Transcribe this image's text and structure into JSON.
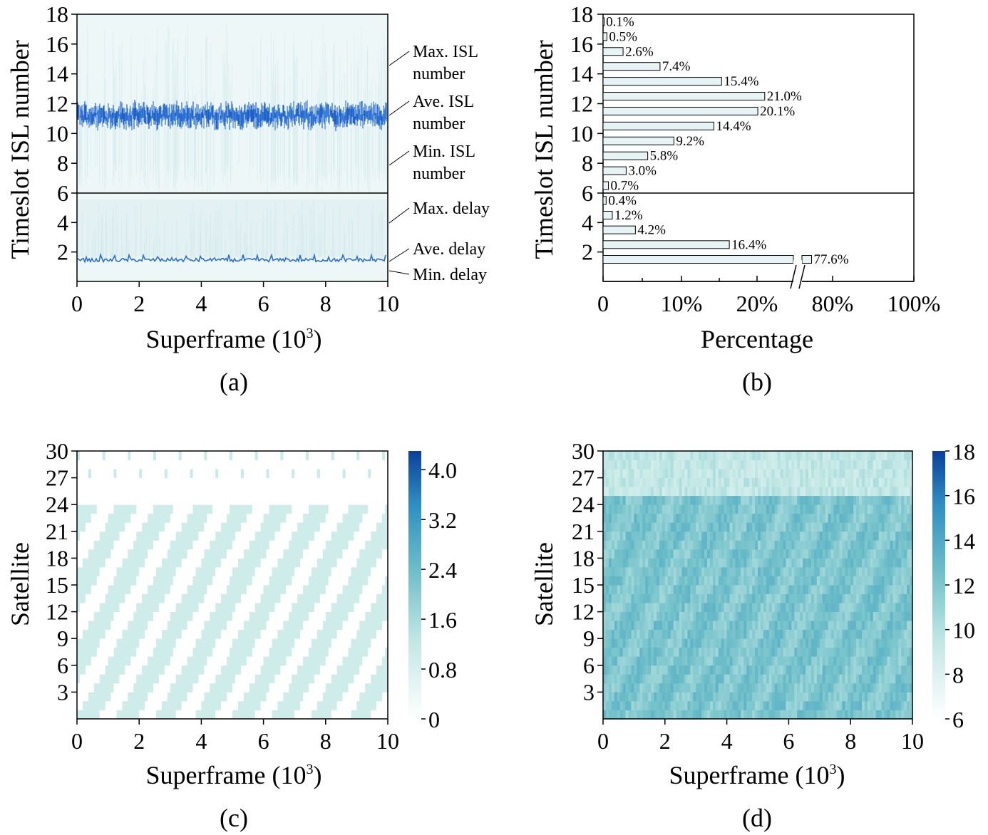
{
  "chart_data": [
    {
      "id": "a",
      "type": "line",
      "caption": "(a)",
      "xlabel": "Superframe (10",
      "xlabel_sup": "3",
      "xlabel_close": ")",
      "ylabel": "Timeslot  ISL number",
      "xlim": [
        0,
        10
      ],
      "x_ticks": [
        "0",
        "2",
        "4",
        "6",
        "8",
        "10"
      ],
      "y_ticks": [
        "2",
        "4",
        "6",
        "8",
        "10",
        "12",
        "14",
        "16",
        "18"
      ],
      "upper_panel": {
        "ylim": [
          6,
          18
        ],
        "series": [
          {
            "name": "Max. ISL number",
            "band": [
              9.5,
              17.5
            ]
          },
          {
            "name": "Ave. ISL number",
            "mean": 11.2,
            "spread": 0.4
          },
          {
            "name": "Min. ISL number",
            "band": [
              6.0,
              8.0
            ]
          }
        ]
      },
      "lower_panel": {
        "ylim": [
          0,
          6
        ],
        "series": [
          {
            "name": "Max. delay",
            "band": [
              1.5,
              5.5
            ]
          },
          {
            "name": "Ave. delay",
            "mean": 1.45,
            "spread": 0.12
          },
          {
            "name": "Min. delay",
            "value": 1.0
          }
        ]
      },
      "annotations": [
        {
          "line1": "Max. ISL",
          "line2": "number"
        },
        {
          "line1": "Ave. ISL",
          "line2": "number"
        },
        {
          "line1": "Min. ISL",
          "line2": "number"
        },
        {
          "line1": "Max. delay",
          "line2": ""
        },
        {
          "line1": "Ave. delay",
          "line2": ""
        },
        {
          "line1": "Min. delay",
          "line2": ""
        }
      ]
    },
    {
      "id": "b",
      "type": "bar",
      "orientation": "horizontal",
      "caption": "(b)",
      "xlabel": "Percentage",
      "ylabel": "Timeslot  ISL number",
      "x_ticks": [
        "0",
        "10%",
        "20%",
        "80%",
        "100%"
      ],
      "y_ticks": [
        "2",
        "4",
        "6",
        "8",
        "10",
        "12",
        "14",
        "16",
        "18"
      ],
      "axis_break": "between 20% and 80%",
      "bars": [
        {
          "y": 17.5,
          "value": 0.1,
          "label": "0.1%"
        },
        {
          "y": 16.5,
          "value": 0.5,
          "label": "0.5%"
        },
        {
          "y": 15.5,
          "value": 2.6,
          "label": "2.6%"
        },
        {
          "y": 14.5,
          "value": 7.4,
          "label": "7.4%"
        },
        {
          "y": 13.5,
          "value": 15.4,
          "label": "15.4%"
        },
        {
          "y": 12.5,
          "value": 21.0,
          "label": "21.0%"
        },
        {
          "y": 11.5,
          "value": 20.1,
          "label": "20.1%"
        },
        {
          "y": 10.5,
          "value": 14.4,
          "label": "14.4%"
        },
        {
          "y": 9.5,
          "value": 9.2,
          "label": "9.2%"
        },
        {
          "y": 8.5,
          "value": 5.8,
          "label": "5.8%"
        },
        {
          "y": 7.5,
          "value": 3.0,
          "label": "3.0%"
        },
        {
          "y": 6.5,
          "value": 0.7,
          "label": "0.7%"
        },
        {
          "y": 5.5,
          "value": 0.4,
          "label": "0.4%"
        },
        {
          "y": 4.5,
          "value": 1.2,
          "label": "1.2%"
        },
        {
          "y": 3.5,
          "value": 4.2,
          "label": "4.2%"
        },
        {
          "y": 2.5,
          "value": 16.4,
          "label": "16.4%"
        },
        {
          "y": 1.5,
          "value": 77.6,
          "label": "77.6%"
        }
      ]
    },
    {
      "id": "c",
      "type": "heatmap",
      "caption": "(c)",
      "xlabel": "Superframe (10",
      "xlabel_sup": "3",
      "xlabel_close": ")",
      "ylabel": "Satellite",
      "xlim": [
        0,
        10
      ],
      "ylim": [
        0,
        30
      ],
      "x_ticks": [
        "0",
        "2",
        "4",
        "6",
        "8",
        "10"
      ],
      "y_ticks": [
        "3",
        "6",
        "9",
        "12",
        "15",
        "18",
        "21",
        "24",
        "27",
        "30"
      ],
      "colorbar_ticks": [
        "0",
        "0.8",
        "1.6",
        "2.4",
        "3.2",
        "4.0"
      ],
      "colorbar_range": [
        0,
        4.3
      ],
      "colors": [
        "#ffffff",
        "#bfe6e4",
        "#6fbfc9",
        "#2d8fc2",
        "#0b3f9c"
      ],
      "typical_value": 1.0
    },
    {
      "id": "d",
      "type": "heatmap",
      "caption": "(d)",
      "xlabel": "Superframe (10",
      "xlabel_sup": "3",
      "xlabel_close": ")",
      "ylabel": "Satellite",
      "xlim": [
        0,
        10
      ],
      "ylim": [
        0,
        30
      ],
      "x_ticks": [
        "0",
        "2",
        "4",
        "6",
        "8",
        "10"
      ],
      "y_ticks": [
        "3",
        "6",
        "9",
        "12",
        "15",
        "18",
        "21",
        "24",
        "27",
        "30"
      ],
      "colorbar_ticks": [
        "6",
        "8",
        "10",
        "12",
        "14",
        "16",
        "18"
      ],
      "colorbar_range": [
        6,
        18
      ],
      "colors": [
        "#ffffff",
        "#bfe6e4",
        "#6fbfc9",
        "#2d8fc2",
        "#0b3f9c"
      ],
      "typical_value": 12
    }
  ]
}
